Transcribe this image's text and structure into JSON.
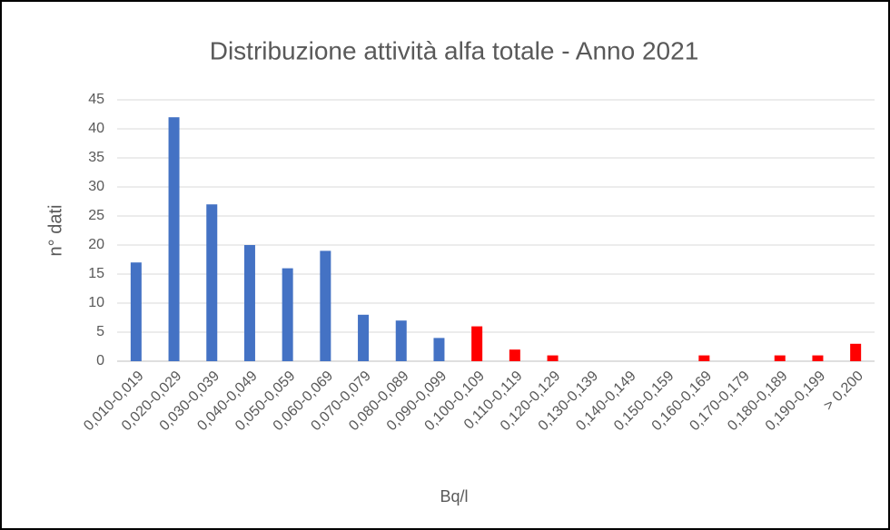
{
  "chart_data": {
    "type": "bar",
    "title": "Distribuzione attività alfa totale - Anno 2021",
    "x_label": "Bq/l",
    "y_label": "n° dati",
    "categories": [
      "0,010-0,019",
      "0,020-0,029",
      "0,030-0,039",
      "0,040-0,049",
      "0,050-0,059",
      "0,060-0,069",
      "0,070-0,079",
      "0,080-0,089",
      "0,090-0,099",
      "0,100-0,109",
      "0,110-0,119",
      "0,120-0,129",
      "0,130-0,139",
      "0,140-0,149",
      "0,150-0,159",
      "0,160-0,169",
      "0,170-0,179",
      "0,180-0,189",
      "0,190-0,199",
      "> 0,200"
    ],
    "values": [
      17,
      42,
      27,
      20,
      16,
      19,
      8,
      7,
      4,
      6,
      2,
      1,
      0,
      0,
      0,
      1,
      0,
      1,
      1,
      3
    ],
    "colors": [
      "#4472c4",
      "#4472c4",
      "#4472c4",
      "#4472c4",
      "#4472c4",
      "#4472c4",
      "#4472c4",
      "#4472c4",
      "#4472c4",
      "#ff0000",
      "#ff0000",
      "#ff0000",
      "#ff0000",
      "#ff0000",
      "#ff0000",
      "#ff0000",
      "#ff0000",
      "#ff0000",
      "#ff0000",
      "#ff0000"
    ],
    "ylim": [
      0,
      45
    ],
    "yticks": [
      0,
      5,
      10,
      15,
      20,
      25,
      30,
      35,
      40,
      45
    ],
    "grid": true
  }
}
